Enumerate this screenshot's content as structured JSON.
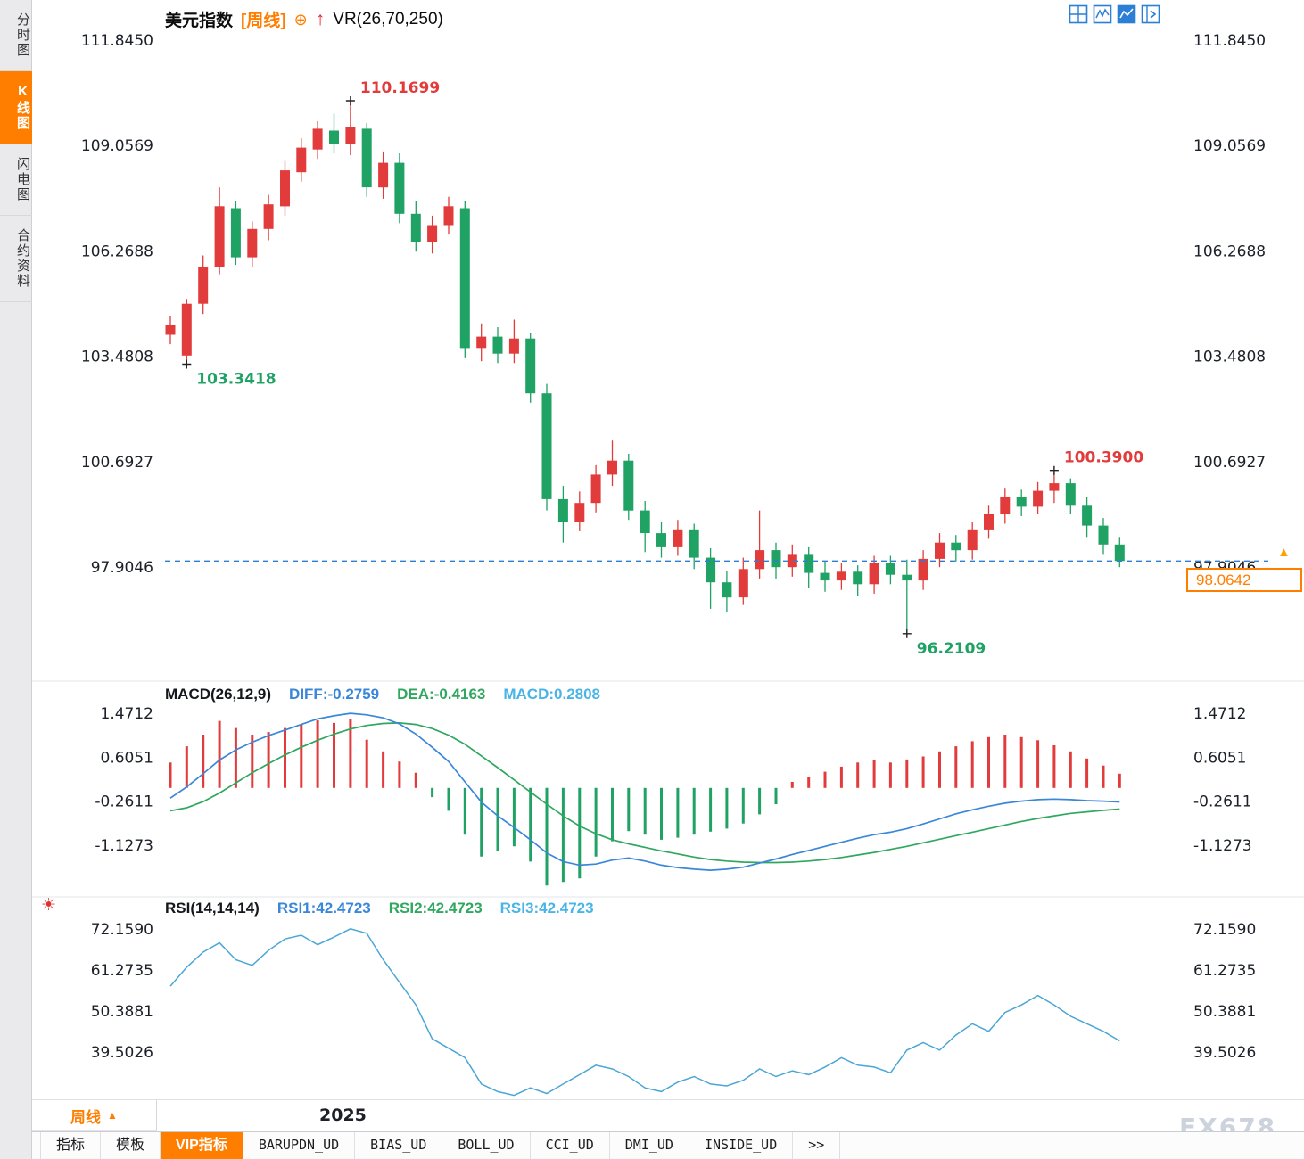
{
  "colors": {
    "up": "#e23b3b",
    "down": "#1fa263",
    "diff": "#3a86d8",
    "dea": "#2fa75f",
    "macd_text": "#49b4e6",
    "rsi_line": "#4aa6d6",
    "dashed_line": "#2b7fd4",
    "accent": "#ff7e00"
  },
  "icons": {
    "plus_circled": "⊕",
    "up_arrow": "↑",
    "sun": "☀",
    "up_triangle": "▲",
    "more": ">>"
  },
  "sidebar": {
    "items": [
      {
        "label": "分时图",
        "active": false
      },
      {
        "label": "K线图",
        "active": true
      },
      {
        "label": "闪电图",
        "active": false
      },
      {
        "label": "合约资料",
        "active": false
      }
    ]
  },
  "header": {
    "title": "美元指数",
    "period": "[周线]",
    "indicator": "VR(26,70,250)"
  },
  "macd_header": {
    "title": "MACD(26,12,9)",
    "diff": "DIFF:-0.2759",
    "dea": "DEA:-0.4163",
    "macd": "MACD:0.2808"
  },
  "rsi_header": {
    "title": "RSI(14,14,14)",
    "rsi1": "RSI1:42.4723",
    "rsi2": "RSI2:42.4723",
    "rsi3": "RSI3:42.4723"
  },
  "price_box": {
    "value": "98.0642"
  },
  "xaxis": {
    "period": "周线",
    "year": "2025"
  },
  "bottom_tabs": [
    {
      "label": "指标",
      "active": false
    },
    {
      "label": "模板",
      "active": false
    },
    {
      "label": "VIP指标",
      "active": true
    },
    {
      "label": "BARUPDN_UD",
      "active": false
    },
    {
      "label": "BIAS_UD",
      "active": false
    },
    {
      "label": "BOLL_UD",
      "active": false
    },
    {
      "label": "CCI_UD",
      "active": false
    },
    {
      "label": "DMI_UD",
      "active": false
    },
    {
      "label": "INSIDE_UD",
      "active": false
    },
    {
      "label": ">>",
      "active": false
    }
  ],
  "watermark": "FX678",
  "chart_data": {
    "type": "candlestick",
    "title": "美元指数 周线",
    "y_axis": {
      "price": [
        "111.8450",
        "109.0569",
        "106.2688",
        "103.4808",
        "100.6927",
        "97.9046"
      ],
      "macd": [
        "1.4712",
        "0.6051",
        "-0.2611",
        "-1.1273"
      ],
      "rsi": [
        "72.1590",
        "61.2735",
        "50.3881",
        "39.5026"
      ]
    },
    "current_price": 98.0642,
    "x_year_label": "2025",
    "annotations": [
      {
        "text": "103.3418",
        "index": 1,
        "kind": "low"
      },
      {
        "text": "110.1699",
        "index": 11,
        "kind": "high"
      },
      {
        "text": "96.2109",
        "index": 45,
        "kind": "low"
      },
      {
        "text": "100.3900",
        "index": 54,
        "kind": "high"
      }
    ],
    "candles": [
      [
        104.05,
        104.55,
        103.8,
        104.3
      ],
      [
        103.5,
        105.0,
        103.3418,
        104.87
      ],
      [
        104.87,
        106.15,
        104.6,
        105.85
      ],
      [
        105.85,
        107.95,
        105.65,
        107.45
      ],
      [
        107.4,
        107.6,
        105.9,
        106.1
      ],
      [
        106.1,
        107.05,
        105.85,
        106.85
      ],
      [
        106.85,
        107.75,
        106.55,
        107.5
      ],
      [
        107.45,
        108.65,
        107.2,
        108.4
      ],
      [
        108.35,
        109.25,
        108.1,
        109.0
      ],
      [
        108.95,
        109.7,
        108.7,
        109.5
      ],
      [
        109.45,
        109.9,
        108.85,
        109.1
      ],
      [
        109.1,
        110.1699,
        108.8,
        109.55
      ],
      [
        109.5,
        109.65,
        107.7,
        107.95
      ],
      [
        107.95,
        108.9,
        107.65,
        108.6
      ],
      [
        108.6,
        108.85,
        107.0,
        107.25
      ],
      [
        107.25,
        107.6,
        106.25,
        106.5
      ],
      [
        106.5,
        107.2,
        106.2,
        106.95
      ],
      [
        106.95,
        107.7,
        106.7,
        107.45
      ],
      [
        107.4,
        107.6,
        103.45,
        103.7
      ],
      [
        103.7,
        104.35,
        103.35,
        104.0
      ],
      [
        104.0,
        104.25,
        103.3,
        103.55
      ],
      [
        103.55,
        104.45,
        103.3,
        103.95
      ],
      [
        103.95,
        104.1,
        102.25,
        102.5
      ],
      [
        102.5,
        102.75,
        99.4,
        99.7
      ],
      [
        99.7,
        100.05,
        98.55,
        99.1
      ],
      [
        99.1,
        99.9,
        98.85,
        99.6
      ],
      [
        99.6,
        100.6,
        99.35,
        100.35
      ],
      [
        100.35,
        101.25,
        100.05,
        100.72
      ],
      [
        100.72,
        100.9,
        99.15,
        99.4
      ],
      [
        99.4,
        99.65,
        98.3,
        98.8
      ],
      [
        98.8,
        99.1,
        98.15,
        98.45
      ],
      [
        98.45,
        99.15,
        98.2,
        98.9
      ],
      [
        98.9,
        99.05,
        97.85,
        98.15
      ],
      [
        98.15,
        98.4,
        96.8,
        97.5
      ],
      [
        97.5,
        97.8,
        96.7,
        97.1
      ],
      [
        97.1,
        98.15,
        96.9,
        97.85
      ],
      [
        97.85,
        99.4,
        97.6,
        98.35
      ],
      [
        98.35,
        98.55,
        97.6,
        97.9
      ],
      [
        97.9,
        98.5,
        97.65,
        98.25
      ],
      [
        98.25,
        98.45,
        97.35,
        97.75
      ],
      [
        97.75,
        98.05,
        97.25,
        97.55
      ],
      [
        97.55,
        98.0,
        97.3,
        97.78
      ],
      [
        97.78,
        97.95,
        97.15,
        97.45
      ],
      [
        97.45,
        98.2,
        97.2,
        98.0
      ],
      [
        98.0,
        98.2,
        97.45,
        97.7
      ],
      [
        97.7,
        98.1,
        96.2109,
        97.55
      ],
      [
        97.55,
        98.35,
        97.3,
        98.12
      ],
      [
        98.12,
        98.8,
        97.9,
        98.55
      ],
      [
        98.55,
        98.75,
        98.05,
        98.35
      ],
      [
        98.35,
        99.1,
        98.1,
        98.9
      ],
      [
        98.9,
        99.55,
        98.65,
        99.3
      ],
      [
        99.3,
        100.0,
        99.05,
        99.75
      ],
      [
        99.75,
        99.95,
        99.25,
        99.5
      ],
      [
        99.5,
        100.15,
        99.3,
        99.92
      ],
      [
        99.92,
        100.39,
        99.6,
        100.12
      ],
      [
        100.12,
        100.25,
        99.3,
        99.55
      ],
      [
        99.55,
        99.75,
        98.7,
        99.0
      ],
      [
        99.0,
        99.2,
        98.25,
        98.5
      ],
      [
        98.5,
        98.7,
        97.9,
        98.0642
      ]
    ],
    "macd": {
      "diff": [
        -0.2,
        0.02,
        0.28,
        0.55,
        0.75,
        0.9,
        1.03,
        1.14,
        1.25,
        1.36,
        1.42,
        1.47,
        1.44,
        1.38,
        1.26,
        1.06,
        0.8,
        0.52,
        0.12,
        -0.28,
        -0.55,
        -0.78,
        -1.02,
        -1.28,
        -1.45,
        -1.52,
        -1.5,
        -1.42,
        -1.38,
        -1.44,
        -1.52,
        -1.57,
        -1.6,
        -1.62,
        -1.6,
        -1.56,
        -1.48,
        -1.4,
        -1.31,
        -1.23,
        -1.15,
        -1.07,
        -0.99,
        -0.92,
        -0.87,
        -0.8,
        -0.71,
        -0.61,
        -0.51,
        -0.43,
        -0.36,
        -0.3,
        -0.26,
        -0.23,
        -0.22,
        -0.23,
        -0.25,
        -0.26,
        -0.2759
      ],
      "dea": [
        -0.45,
        -0.39,
        -0.27,
        -0.1,
        0.1,
        0.3,
        0.48,
        0.65,
        0.8,
        0.94,
        1.06,
        1.16,
        1.23,
        1.27,
        1.28,
        1.25,
        1.17,
        1.04,
        0.86,
        0.63,
        0.4,
        0.16,
        -0.08,
        -0.32,
        -0.55,
        -0.75,
        -0.9,
        -1.02,
        -1.1,
        -1.17,
        -1.24,
        -1.3,
        -1.36,
        -1.41,
        -1.44,
        -1.46,
        -1.47,
        -1.47,
        -1.46,
        -1.44,
        -1.41,
        -1.37,
        -1.32,
        -1.27,
        -1.21,
        -1.15,
        -1.08,
        -1.01,
        -0.94,
        -0.87,
        -0.8,
        -0.73,
        -0.66,
        -0.6,
        -0.55,
        -0.5,
        -0.47,
        -0.44,
        -0.4163
      ],
      "hist": [
        0.5,
        0.82,
        1.05,
        1.32,
        1.18,
        1.05,
        1.1,
        1.18,
        1.25,
        1.33,
        1.28,
        1.35,
        0.95,
        0.72,
        0.52,
        0.3,
        -0.18,
        -0.45,
        -0.92,
        -1.35,
        -1.25,
        -1.15,
        -1.45,
        -1.92,
        -1.85,
        -1.78,
        -1.35,
        -1.05,
        -0.85,
        -0.92,
        -1.02,
        -0.98,
        -0.92,
        -0.86,
        -0.8,
        -0.7,
        -0.52,
        -0.32,
        0.12,
        0.22,
        0.32,
        0.42,
        0.5,
        0.55,
        0.5,
        0.56,
        0.62,
        0.72,
        0.82,
        0.92,
        1.0,
        1.05,
        1.0,
        0.94,
        0.84,
        0.72,
        0.58,
        0.44,
        0.2808
      ]
    },
    "rsi": [
      57.0,
      62.0,
      66.0,
      68.5,
      64.0,
      62.5,
      66.5,
      69.5,
      70.5,
      68.0,
      70.0,
      72.2,
      71.0,
      64.0,
      58.0,
      52.0,
      43.0,
      40.5,
      38.0,
      31.0,
      29.0,
      28.0,
      30.0,
      28.5,
      31.0,
      33.5,
      36.0,
      35.0,
      33.0,
      30.0,
      29.0,
      31.5,
      33.0,
      31.0,
      30.5,
      32.0,
      35.0,
      33.0,
      34.5,
      33.5,
      35.5,
      38.0,
      36.0,
      35.5,
      34.0,
      40.0,
      42.0,
      40.0,
      44.0,
      47.0,
      45.0,
      50.0,
      52.0,
      54.5,
      52.0,
      49.0,
      47.0,
      45.0,
      42.4723
    ]
  }
}
